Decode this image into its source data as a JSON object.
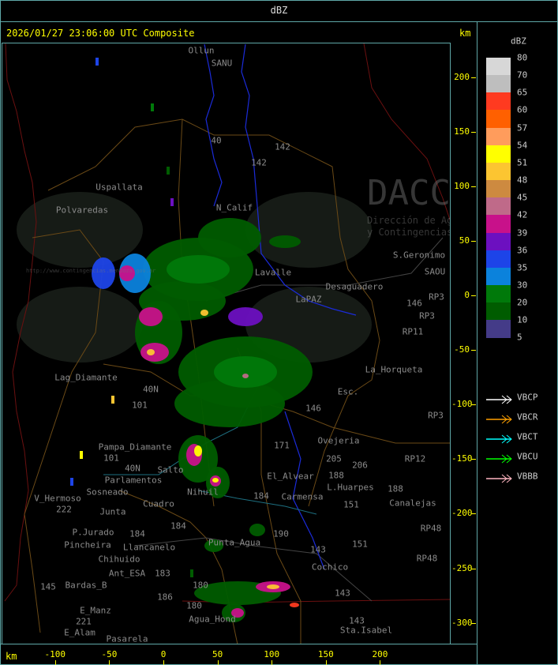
{
  "window": {
    "title": "dBZ"
  },
  "header": {
    "timestamp": "2026/01/27 23:06:00 UTC Composite",
    "unit_right": "km"
  },
  "axes": {
    "x_unit": "km",
    "x_ticks": [
      -100,
      -50,
      0,
      50,
      100,
      150,
      200
    ],
    "y_ticks": [
      200,
      150,
      100,
      50,
      0,
      -50,
      -100,
      -150,
      -200,
      -250,
      -300
    ]
  },
  "watermark": {
    "logo": "DACC",
    "line1": "Dirección de Agricultura",
    "line2": "y Contingencias Climáticas",
    "url": "http://www.contingencias.mendoza.gov.ar"
  },
  "legend": {
    "title": "dBZ",
    "levels": [
      "80",
      "70",
      "65",
      "60",
      "57",
      "54",
      "51",
      "48",
      "45",
      "42",
      "39",
      "36",
      "35",
      "30",
      "20",
      "10",
      "5"
    ],
    "colors": [
      "#d7d7d7",
      "#bebebe",
      "#ff3a20",
      "#ff6000",
      "#ff9c5c",
      "#ffff00",
      "#fcc531",
      "#cd8a40",
      "#bf6a89",
      "#c8118a",
      "#6c10c0",
      "#1d44e8",
      "#0b82dc",
      "#00790a",
      "#005c00",
      "#443b88"
    ],
    "radars": [
      {
        "name": "VBCP",
        "color": "#ffffff"
      },
      {
        "name": "VBCR",
        "color": "#ffa000"
      },
      {
        "name": "VBCT",
        "color": "#00ffff"
      },
      {
        "name": "VBCU",
        "color": "#00ff00"
      },
      {
        "name": "VBBB",
        "color": "#ffb6c1"
      }
    ]
  },
  "places": [
    "Ollun",
    "SANU",
    "Uspallata",
    "Polvaredas",
    "N_Calif",
    "Desaguadero",
    "S.Geronimo",
    "SAOU",
    "La_Horqueta",
    "Esc.",
    "Lag_Diamante",
    "Pampa_Diamante",
    "Sosneado",
    "Parlamentos",
    "V_Hermoso",
    "Junta",
    "P.Jurado",
    "Pincheira",
    "Llancanelo",
    "Chihuido",
    "Ant_ESA",
    "Bardas_B",
    "E_Manz",
    "E_Alam",
    "Pasarela",
    "Punta_Agua",
    "Cochico",
    "Sta.Isabel",
    "Agua_Hond",
    "Canalejas",
    "L.Huarpes",
    "Carmensa",
    "Ovejeria",
    "Nihuil",
    "LaPAZ",
    "Lavalle",
    "RP3",
    "RP3",
    "RP11",
    "RP3",
    "RP12",
    "RP48",
    "RP48",
    "142",
    "142",
    "146",
    "40",
    "40N",
    "40N",
    "205",
    "206",
    "188",
    "151",
    "151",
    "143",
    "143",
    "143",
    "184",
    "184",
    "184",
    "180",
    "180",
    "186",
    "183",
    "190",
    "145",
    "221",
    "222",
    "171",
    "101",
    "101",
    "146",
    "188",
    "Salto",
    "El_Alvear",
    "Cuadro"
  ]
}
